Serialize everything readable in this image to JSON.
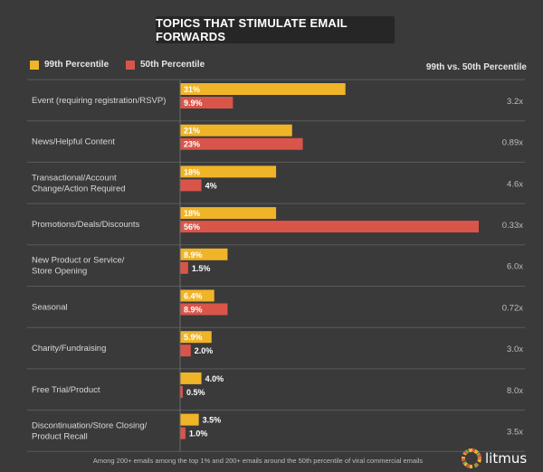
{
  "colors": {
    "p99": "#f0b429",
    "p50": "#d9554a",
    "divider": "#5a5a5a"
  },
  "chart_data": {
    "type": "bar",
    "orientation": "horizontal",
    "title": "TOPICS THAT STIMULATE EMAIL FORWARDS",
    "legend": [
      "99th Percentile",
      "50th Percentile"
    ],
    "legend_position": "top-left",
    "ratio_header": "99th vs. 50th Percentile",
    "xlim": [
      0,
      56
    ],
    "categories": [
      [
        "Event (requiring registration/RSVP)"
      ],
      [
        "News/Helpful Content"
      ],
      [
        "Transactional/Account",
        "Change/Action Required"
      ],
      [
        "Promotions/Deals/Discounts"
      ],
      [
        "New Product or Service/",
        "Store Opening"
      ],
      [
        "Seasonal"
      ],
      [
        "Charity/Fundraising"
      ],
      [
        "Free Trial/Product"
      ],
      [
        "Discontinuation/Store Closing/",
        "Product Recall"
      ]
    ],
    "series": [
      {
        "name": "99th Percentile",
        "values": [
          31,
          21,
          18,
          18,
          8.9,
          6.4,
          5.9,
          4.0,
          3.5
        ],
        "labels": [
          "31%",
          "21%",
          "18%",
          "18%",
          "8.9%",
          "6.4%",
          "5.9%",
          "4.0%",
          "3.5%"
        ]
      },
      {
        "name": "50th Percentile",
        "values": [
          9.9,
          23,
          4,
          56,
          1.5,
          8.9,
          2.0,
          0.5,
          1.0
        ],
        "labels": [
          "9.9%",
          "23%",
          "4%",
          "56%",
          "1.5%",
          "8.9%",
          "2.0%",
          "0.5%",
          "1.0%"
        ]
      }
    ],
    "ratios": [
      "3.2x",
      "0.89x",
      "4.6x",
      "0.33x",
      "6.0x",
      "0.72x",
      "3.0x",
      "8.0x",
      "3.5x"
    ]
  },
  "footer": "Among 200+ emails among the top 1% and 200+ emails around the 50th percentile of viral commercial emails",
  "brand": {
    "name": "litmus",
    "icon": "litmus-logo-icon"
  }
}
